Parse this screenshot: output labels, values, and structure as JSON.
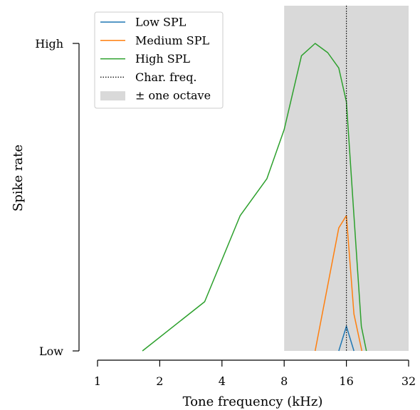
{
  "chart_data": {
    "type": "line",
    "xlabel": "Tone frequency (kHz)",
    "ylabel": "Spike rate",
    "x_scale": "log2",
    "xlim": [
      1,
      32
    ],
    "x_ticks": [
      1,
      2,
      4,
      8,
      16,
      32
    ],
    "x_tick_labels": [
      "1",
      "2",
      "4",
      "8",
      "16",
      "32"
    ],
    "ylim": [
      0,
      1
    ],
    "y_ticks": [
      0,
      1
    ],
    "y_tick_labels": [
      "Low",
      "High"
    ],
    "grid": false,
    "legend_position": "top-left",
    "characteristic_frequency": 16,
    "octave_band": [
      8,
      32
    ],
    "series": [
      {
        "name": "Low SPL",
        "color": "#1f77b4",
        "x": [
          14.7,
          16,
          17.4
        ],
        "y": [
          0.0,
          0.08,
          0.0
        ]
      },
      {
        "name": "Medium SPL",
        "color": "#ff7f0e",
        "x": [
          11.3,
          14.7,
          16,
          17.4,
          19.0
        ],
        "y": [
          0.0,
          0.4,
          0.44,
          0.12,
          0.0
        ]
      },
      {
        "name": "High SPL",
        "color": "#2ca02c",
        "x": [
          1.65,
          3.3,
          4.9,
          6.6,
          8.0,
          9.7,
          11.3,
          13.0,
          14.7,
          16,
          17.4,
          18.9,
          20.0
        ],
        "y": [
          0.0,
          0.16,
          0.44,
          0.56,
          0.72,
          0.96,
          1.0,
          0.97,
          0.92,
          0.81,
          0.44,
          0.08,
          0.0
        ]
      }
    ],
    "legend": [
      {
        "label": "Low SPL",
        "kind": "line",
        "color": "#1f77b4"
      },
      {
        "label": "Medium SPL",
        "kind": "line",
        "color": "#ff7f0e"
      },
      {
        "label": "High SPL",
        "kind": "line",
        "color": "#2ca02c"
      },
      {
        "label": "Char. freq.",
        "kind": "dotted",
        "color": "#000000"
      },
      {
        "label": "± one octave",
        "kind": "patch",
        "color": "#d9d9d9"
      }
    ]
  }
}
